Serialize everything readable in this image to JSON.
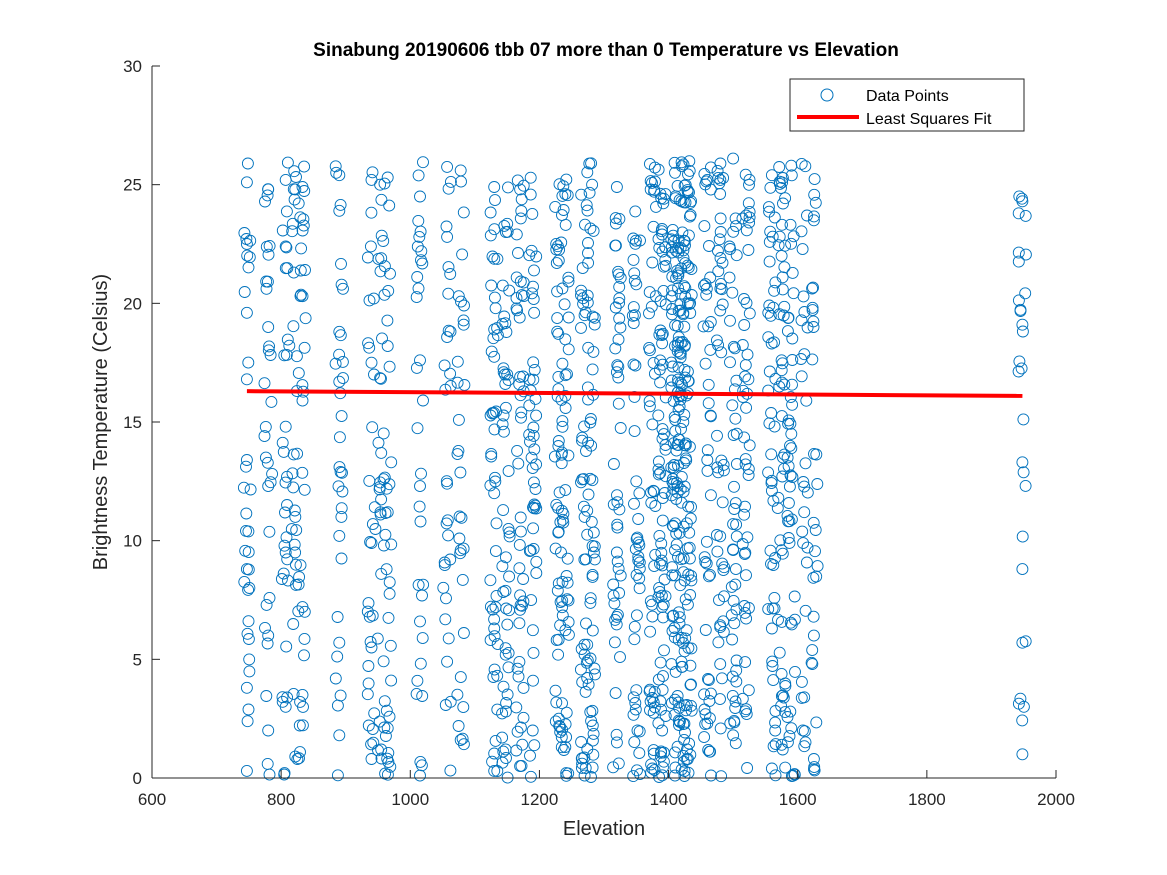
{
  "chart_data": {
    "type": "scatter",
    "title": "Sinabung 20190606 tbb 07 more than 0 Temperature vs Elevation",
    "xlabel": "Elevation",
    "ylabel": "Brightness Temperature (Celsius)",
    "xlim": [
      600,
      2000
    ],
    "ylim": [
      0,
      30
    ],
    "xticks": [
      600,
      800,
      1000,
      1200,
      1400,
      1600,
      1800,
      2000
    ],
    "yticks": [
      0,
      5,
      10,
      15,
      20,
      25,
      30
    ],
    "grid": false,
    "legend_position": "top-right",
    "colors": {
      "points": "#0072BD",
      "fit": "#FF0000",
      "axes": "#262626"
    },
    "series": [
      {
        "name": "Data Points",
        "kind": "scatter",
        "marker": "circle-open",
        "elevation_columns": [
          747,
          780,
          807,
          822,
          833,
          890,
          940,
          955,
          965,
          1015,
          1057,
          1078,
          1130,
          1148,
          1170,
          1190,
          1230,
          1240,
          1270,
          1280,
          1320,
          1350,
          1375,
          1390,
          1410,
          1420,
          1430,
          1460,
          1480,
          1500,
          1520,
          1560,
          1575,
          1590,
          1610,
          1625,
          1948
        ],
        "temperature_range": [
          0,
          26
        ],
        "x": [
          747,
          747,
          747,
          747,
          747,
          747,
          747,
          747,
          780,
          780,
          780,
          780,
          780,
          807,
          807,
          807,
          807,
          807,
          822,
          822,
          822,
          833,
          833,
          833,
          833,
          833,
          890,
          890,
          890,
          890,
          890,
          890,
          890,
          940,
          940,
          940,
          940,
          940,
          955,
          955,
          955,
          955,
          965,
          965,
          965,
          965,
          1015,
          1015,
          1015,
          1015,
          1015,
          1057,
          1057,
          1057,
          1078,
          1078,
          1078,
          1130,
          1130,
          1130,
          1130,
          1130,
          1148,
          1148,
          1148,
          1148,
          1170,
          1170,
          1170,
          1170,
          1190,
          1190,
          1190,
          1230,
          1230,
          1230,
          1230,
          1240,
          1240,
          1240,
          1270,
          1270,
          1270,
          1270,
          1280,
          1280,
          1280,
          1320,
          1320,
          1320,
          1320,
          1350,
          1350,
          1350,
          1375,
          1375,
          1375,
          1390,
          1390,
          1410,
          1410,
          1410,
          1410,
          1410,
          1420,
          1420,
          1420,
          1420,
          1430,
          1430,
          1430,
          1460,
          1460,
          1460,
          1480,
          1480,
          1500,
          1500,
          1500,
          1520,
          1520,
          1520,
          1560,
          1560,
          1560,
          1560,
          1575,
          1575,
          1575,
          1575,
          1590,
          1590,
          1590,
          1610,
          1610,
          1625,
          1625,
          1625,
          1948,
          1948,
          1948,
          1948,
          1948,
          1948
        ],
        "y": [
          0.3,
          3.8,
          8.8,
          13.4,
          16.8,
          19.6,
          22.5,
          25.1,
          2.0,
          6.0,
          12.3,
          19.0,
          24.8,
          3.0,
          9.5,
          14.8,
          22.4,
          25.2,
          0.9,
          11.0,
          24.8,
          3.5,
          7.2,
          15.9,
          20.3,
          24.9,
          1.8,
          5.7,
          10.2,
          16.7,
          18.8,
          23.9,
          25.4,
          0.8,
          5.5,
          9.9,
          17.5,
          25.2,
          1.2,
          8.6,
          13.7,
          21.9,
          2.1,
          11.2,
          18.2,
          25.3,
          0.1,
          6.6,
          12.3,
          17.6,
          24.5,
          4.9,
          12.4,
          22.8,
          1.6,
          9.6,
          25.6,
          0.3,
          6.3,
          12.0,
          18.9,
          24.9,
          2.8,
          9.3,
          15.6,
          23.0,
          0.5,
          7.7,
          16.9,
          24.8,
          4.1,
          11.4,
          20.7,
          2.5,
          8.2,
          14.2,
          21.8,
          1.3,
          16.1,
          24.6,
          0.1,
          5.2,
          11.0,
          19.5,
          2.4,
          14.0,
          25.9,
          1.5,
          9.5,
          17.1,
          24.9,
          3.7,
          12.5,
          20.8,
          0.4,
          6.8,
          14.9,
          2.0,
          22.9,
          0.1,
          3.3,
          9.6,
          18.2,
          25.5,
          4.9,
          11.6,
          16.1,
          24.3,
          0.8,
          7.3,
          20.0,
          2.3,
          13.4,
          25.2,
          4.8,
          19.7,
          1.8,
          10.7,
          26.1,
          2.9,
          15.6,
          23.7,
          0.4,
          6.3,
          12.1,
          25.4,
          1.4,
          9.6,
          17.6,
          22.0,
          2.1,
          14.5,
          25.8,
          3.4,
          11.2,
          0.8,
          6.0,
          23.5,
          1.0,
          5.7,
          8.8,
          13.3,
          19.1,
          24.3
        ],
        "regression_equation": ""
      },
      {
        "name": "Least Squares Fit",
        "kind": "line",
        "x": [
          747,
          1948
        ],
        "y": [
          16.3,
          16.1
        ]
      }
    ]
  }
}
